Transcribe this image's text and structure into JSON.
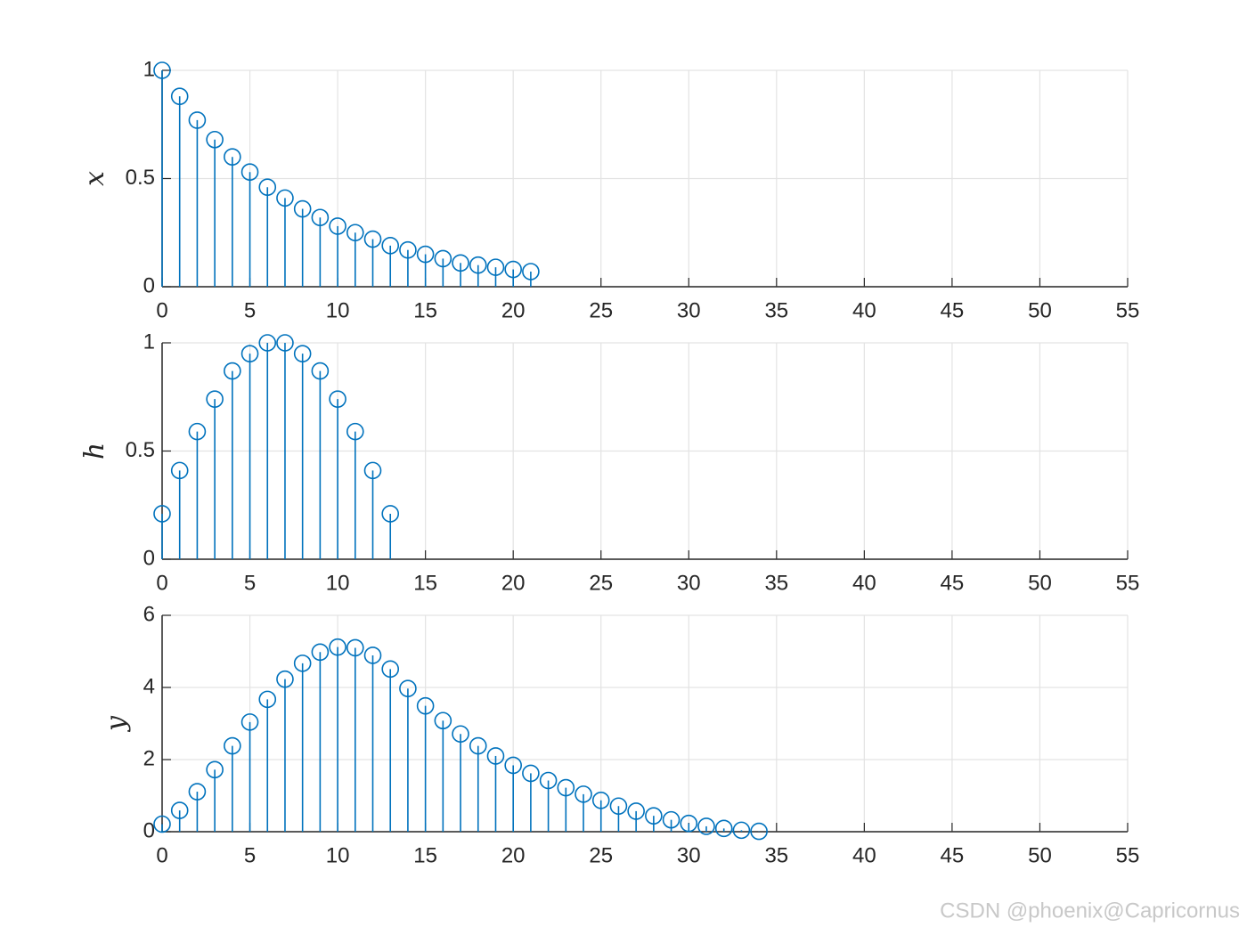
{
  "chart_data": [
    {
      "type": "stem",
      "ylabel": "x",
      "color": "#0072bd",
      "grid": true,
      "x": [
        0,
        1,
        2,
        3,
        4,
        5,
        6,
        7,
        8,
        9,
        10,
        11,
        12,
        13,
        14,
        15,
        16,
        17,
        18,
        19,
        20,
        21
      ],
      "values": [
        1,
        0.88,
        0.77,
        0.68,
        0.6,
        0.53,
        0.46,
        0.41,
        0.36,
        0.32,
        0.28,
        0.25,
        0.22,
        0.19,
        0.17,
        0.15,
        0.13,
        0.11,
        0.1,
        0.09,
        0.08,
        0.07
      ],
      "xlim": [
        0,
        55
      ],
      "xticks": [
        0,
        5,
        10,
        15,
        20,
        25,
        30,
        35,
        40,
        45,
        50,
        55
      ],
      "ylim": [
        0,
        1
      ],
      "yticks": [
        0,
        0.5,
        1
      ]
    },
    {
      "type": "stem",
      "ylabel": "h",
      "color": "#0072bd",
      "grid": true,
      "x": [
        0,
        1,
        2,
        3,
        4,
        5,
        6,
        7,
        8,
        9,
        10,
        11,
        12,
        13
      ],
      "values": [
        0.21,
        0.41,
        0.59,
        0.74,
        0.87,
        0.95,
        1,
        1,
        0.95,
        0.87,
        0.74,
        0.59,
        0.41,
        0.21
      ],
      "xlim": [
        0,
        55
      ],
      "xticks": [
        0,
        5,
        10,
        15,
        20,
        25,
        30,
        35,
        40,
        45,
        50,
        55
      ],
      "ylim": [
        0,
        1
      ],
      "yticks": [
        0,
        0.5,
        1
      ]
    },
    {
      "type": "stem",
      "ylabel": "y",
      "color": "#0072bd",
      "grid": true,
      "x": [
        0,
        1,
        2,
        3,
        4,
        5,
        6,
        7,
        8,
        9,
        10,
        11,
        12,
        13,
        14,
        15,
        16,
        17,
        18,
        19,
        20,
        21,
        22,
        23,
        24,
        25,
        26,
        27,
        28,
        29,
        30,
        31,
        32,
        33,
        34
      ],
      "values": [
        0.21,
        0.59,
        1.11,
        1.72,
        2.38,
        3.04,
        3.67,
        4.23,
        4.67,
        4.98,
        5.12,
        5.1,
        4.89,
        4.51,
        3.97,
        3.49,
        3.08,
        2.71,
        2.38,
        2.1,
        1.84,
        1.62,
        1.42,
        1.22,
        1.04,
        0.87,
        0.71,
        0.57,
        0.44,
        0.33,
        0.23,
        0.15,
        0.09,
        0.04,
        0.01
      ],
      "xlim": [
        0,
        55
      ],
      "xticks": [
        0,
        5,
        10,
        15,
        20,
        25,
        30,
        35,
        40,
        45,
        50,
        55
      ],
      "ylim": [
        0,
        6
      ],
      "yticks": [
        0,
        2,
        4,
        6
      ]
    }
  ],
  "watermark": "CSDN @phoenix@Capricornus"
}
